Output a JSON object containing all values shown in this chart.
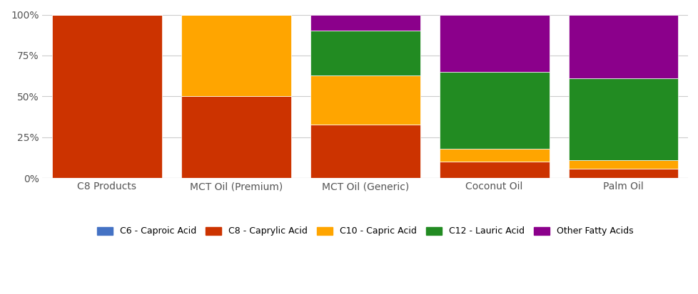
{
  "categories": [
    "C8 Products",
    "MCT Oil (Premium)",
    "MCT Oil (Generic)",
    "Coconut Oil",
    "Palm Oil"
  ],
  "series": [
    {
      "name": "C6 - Caproic Acid",
      "color": "#4472c4",
      "values": [
        0,
        0,
        0,
        0,
        0
      ]
    },
    {
      "name": "C8 - Caprylic Acid",
      "color": "#cc3300",
      "values": [
        100,
        50,
        33,
        10,
        6
      ]
    },
    {
      "name": "C10 - Capric Acid",
      "color": "#ffa500",
      "values": [
        0,
        50,
        30,
        8,
        5
      ]
    },
    {
      "name": "C12 - Lauric Acid",
      "color": "#228B22",
      "values": [
        0,
        0,
        27,
        47,
        50
      ]
    },
    {
      "name": "Other Fatty Acids",
      "color": "#8B008B",
      "values": [
        0,
        0,
        10,
        35,
        39
      ]
    }
  ],
  "ylim": [
    0,
    100
  ],
  "yticks": [
    0,
    25,
    50,
    75,
    100
  ],
  "ytick_labels": [
    "0%",
    "25%",
    "50%",
    "75%",
    "100%"
  ],
  "background_color": "#ffffff",
  "grid_color": "#cccccc",
  "bar_width": 0.85,
  "figsize": [
    9.79,
    4.13
  ],
  "dpi": 100,
  "legend_fontsize": 9,
  "tick_fontsize": 10,
  "tick_color": "#555555"
}
